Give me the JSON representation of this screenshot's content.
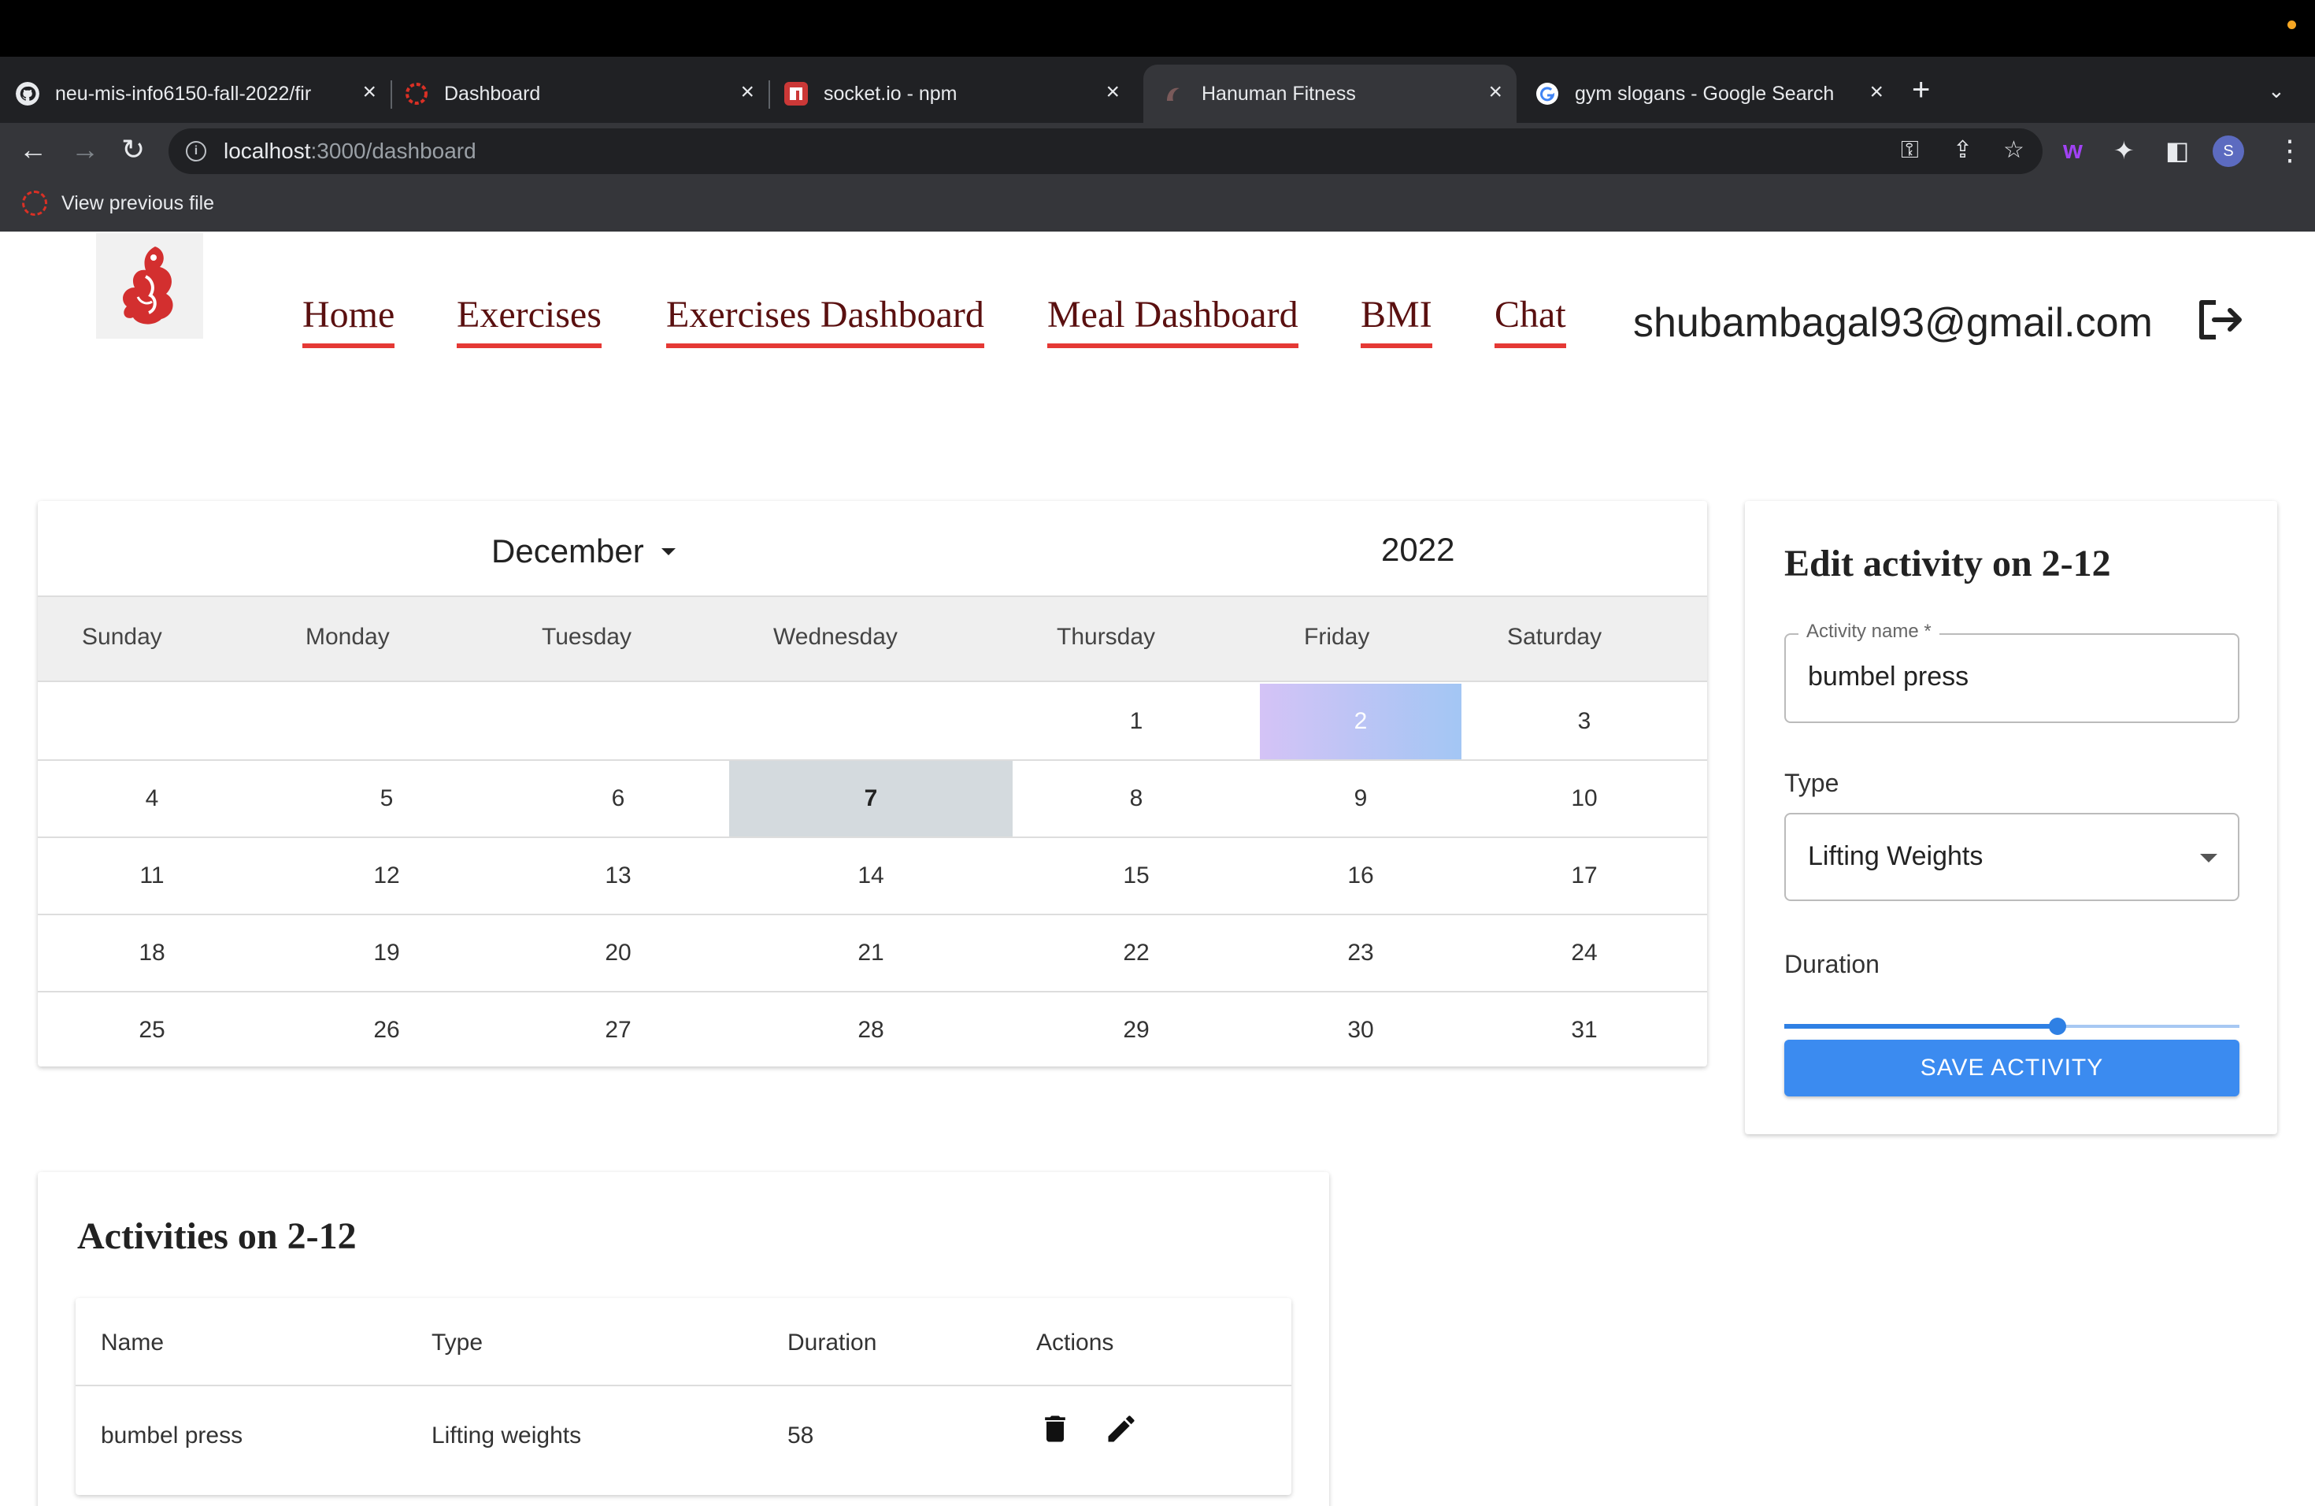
{
  "browser": {
    "tabs": [
      {
        "label": "neu-mis-info6150-fall-2022/fir",
        "favicon": "github-icon",
        "active": false
      },
      {
        "label": "Dashboard",
        "favicon": "dashboard-favicon",
        "active": false
      },
      {
        "label": "socket.io - npm",
        "favicon": "npm-icon",
        "active": false
      },
      {
        "label": "Hanuman Fitness",
        "favicon": "hanuman-favicon",
        "active": true
      },
      {
        "label": "gym slogans - Google Search",
        "favicon": "google-icon",
        "active": false
      }
    ],
    "url_host": "localhost",
    "url_path": ":3000/dashboard",
    "bookmark_label": "View previous file",
    "profile_initial": "S"
  },
  "nav": {
    "links": [
      "Home",
      "Exercises",
      "Exercises Dashboard",
      "Meal Dashboard",
      "BMI",
      "Chat"
    ],
    "email": "shubambagal93@gmail.com"
  },
  "calendar": {
    "month": "December",
    "year": "2022",
    "weekdays": [
      "Sunday",
      "Monday",
      "Tuesday",
      "Wednesday",
      "Thursday",
      "Friday",
      "Saturday"
    ],
    "weeks": [
      [
        "",
        "",
        "",
        "",
        "1",
        "2",
        "3"
      ],
      [
        "4",
        "5",
        "6",
        "7",
        "8",
        "9",
        "10"
      ],
      [
        "11",
        "12",
        "13",
        "14",
        "15",
        "16",
        "17"
      ],
      [
        "18",
        "19",
        "20",
        "21",
        "22",
        "23",
        "24"
      ],
      [
        "25",
        "26",
        "27",
        "28",
        "29",
        "30",
        "31"
      ]
    ],
    "selected_day": "2",
    "today": "7",
    "selected_color_start": "#d4c3f6",
    "selected_color_end": "#a3c6f4"
  },
  "edit_form": {
    "title": "Edit activity on 2-12",
    "name_label": "Activity name *",
    "name_value": "bumbel press",
    "type_label": "Type",
    "type_value": "Lifting Weights",
    "duration_label": "Duration",
    "duration_fraction": 0.6,
    "save_label": "SAVE ACTIVITY",
    "accent_color": "#3b8bf0"
  },
  "activities": {
    "title": "Activities on 2-12",
    "columns": [
      "Name",
      "Type",
      "Duration",
      "Actions"
    ],
    "rows": [
      {
        "name": "bumbel press",
        "type": "Lifting weights",
        "duration": "58"
      }
    ]
  },
  "nav_accent_color": "#e53935"
}
